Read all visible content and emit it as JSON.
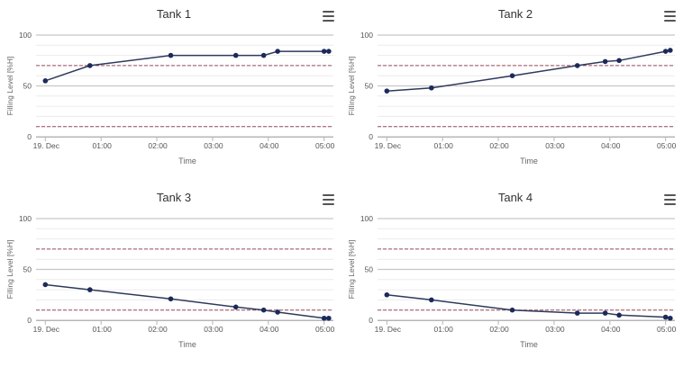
{
  "chart_data": [
    {
      "type": "line",
      "title": "Tank 1",
      "xlabel": "Time",
      "ylabel": "Filling Level [%H]",
      "x_ticks": [
        "19. Dec",
        "01:00",
        "02:00",
        "03:00",
        "04:00",
        "05:00"
      ],
      "y_ticks": [
        0,
        50,
        100
      ],
      "ylim": [
        0,
        100
      ],
      "xlim": [
        "23:50",
        "05:10"
      ],
      "grid": true,
      "thresholds": [
        70,
        10
      ],
      "series": [
        {
          "x": [
            "00:00",
            "00:48",
            "02:15",
            "03:25",
            "03:55",
            "04:10",
            "05:00",
            "05:05"
          ],
          "values": [
            55,
            70,
            80,
            80,
            80,
            84,
            84,
            84
          ]
        }
      ],
      "colors": {
        "line": "#2d3a5c",
        "marker": "#1c2a5a",
        "threshold": "#9b4a5b",
        "grid": "#d9d9d9"
      }
    },
    {
      "type": "line",
      "title": "Tank 2",
      "xlabel": "Time",
      "ylabel": "Filling Level [%H]",
      "x_ticks": [
        "19. Dec",
        "01:00",
        "02:00",
        "03:00",
        "04:00",
        "05:00"
      ],
      "y_ticks": [
        0,
        50,
        100
      ],
      "ylim": [
        0,
        100
      ],
      "xlim": [
        "23:50",
        "05:10"
      ],
      "grid": true,
      "thresholds": [
        70,
        10
      ],
      "series": [
        {
          "x": [
            "00:00",
            "00:48",
            "02:15",
            "03:25",
            "03:55",
            "04:10",
            "05:00",
            "05:05"
          ],
          "values": [
            45,
            48,
            60,
            70,
            74,
            75,
            84,
            85
          ]
        }
      ],
      "colors": {
        "line": "#2d3a5c",
        "marker": "#1c2a5a",
        "threshold": "#9b4a5b",
        "grid": "#d9d9d9"
      }
    },
    {
      "type": "line",
      "title": "Tank 3",
      "xlabel": "Time",
      "ylabel": "Filling Level [%H]",
      "x_ticks": [
        "19. Dec",
        "01:00",
        "02:00",
        "03:00",
        "04:00",
        "05:00"
      ],
      "y_ticks": [
        0,
        50,
        100
      ],
      "ylim": [
        0,
        100
      ],
      "xlim": [
        "23:50",
        "05:10"
      ],
      "grid": true,
      "thresholds": [
        70,
        10
      ],
      "series": [
        {
          "x": [
            "00:00",
            "00:48",
            "02:15",
            "03:25",
            "03:55",
            "04:10",
            "05:00",
            "05:05"
          ],
          "values": [
            35,
            30,
            21,
            13,
            10,
            8,
            2,
            2
          ]
        }
      ],
      "colors": {
        "line": "#2d3a5c",
        "marker": "#1c2a5a",
        "threshold": "#9b4a5b",
        "grid": "#d9d9d9"
      }
    },
    {
      "type": "line",
      "title": "Tank 4",
      "xlabel": "Time",
      "ylabel": "Filling Level [%H]",
      "x_ticks": [
        "19. Dec",
        "01:00",
        "02:00",
        "03:00",
        "04:00",
        "05:00"
      ],
      "y_ticks": [
        0,
        50,
        100
      ],
      "ylim": [
        0,
        100
      ],
      "xlim": [
        "23:50",
        "05:10"
      ],
      "grid": true,
      "thresholds": [
        70,
        10
      ],
      "series": [
        {
          "x": [
            "00:00",
            "00:48",
            "02:15",
            "03:25",
            "03:55",
            "04:10",
            "05:00",
            "05:05"
          ],
          "values": [
            25,
            20,
            10,
            7,
            7,
            5,
            3,
            2
          ]
        }
      ],
      "colors": {
        "line": "#2d3a5c",
        "marker": "#1c2a5a",
        "threshold": "#9b4a5b",
        "grid": "#d9d9d9"
      }
    }
  ],
  "icons": {
    "menu": "hamburger-menu-icon"
  }
}
